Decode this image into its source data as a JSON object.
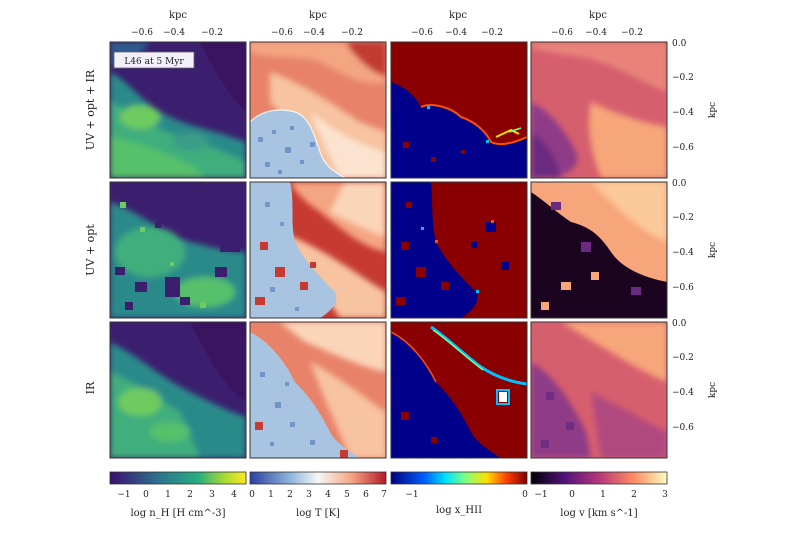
{
  "figure": {
    "inset_label": "L46 at 5 Myr",
    "row_labels": [
      "UV + opt + IR",
      "UV + opt",
      "IR"
    ],
    "top_axis": {
      "label": "kpc",
      "ticks": [
        "−0.6",
        "−0.4",
        "−0.2"
      ]
    },
    "right_axis": {
      "label": "kpc",
      "ticks": [
        "0.0",
        "−0.2",
        "−0.4",
        "−0.6"
      ]
    },
    "colorbars": [
      {
        "label": "log n_H [H cm^-3]",
        "ticks": [
          "−1",
          "0",
          "1",
          "2",
          "3",
          "4"
        ],
        "colors": [
          "#3b0f70",
          "#2c728e",
          "#28ae80",
          "#addc30",
          "#fde725"
        ]
      },
      {
        "label": "log T [K]",
        "ticks": [
          "0",
          "1",
          "2",
          "3",
          "4",
          "5",
          "6",
          "7"
        ],
        "colors": [
          "#2b3ea0",
          "#8fb7da",
          "#f7f7f7",
          "#f4a582",
          "#b2182b"
        ]
      },
      {
        "label": "log x_HII",
        "ticks": [
          "−1",
          "0"
        ],
        "colors": [
          "#00007f",
          "#0060ff",
          "#00e0ff",
          "#7fff7f",
          "#ffe000",
          "#ff4000",
          "#7f0000"
        ]
      },
      {
        "label": "log v [km s^-1]",
        "ticks": [
          "−1",
          "0",
          "1",
          "2",
          "3"
        ],
        "colors": [
          "#000004",
          "#51127c",
          "#b73779",
          "#fc8961",
          "#fcfdbf"
        ]
      }
    ]
  }
}
